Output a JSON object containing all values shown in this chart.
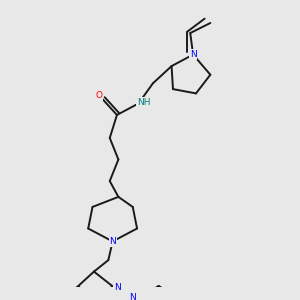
{
  "background_color": "#e8e8e8",
  "bond_color": "#1a1a1a",
  "N_color": "#0000ff",
  "O_color": "#ff0000",
  "NH_color": "#008080",
  "figure_size": [
    3.0,
    3.0
  ],
  "dpi": 100,
  "xlim": [
    0,
    10
  ],
  "ylim": [
    0,
    10
  ]
}
